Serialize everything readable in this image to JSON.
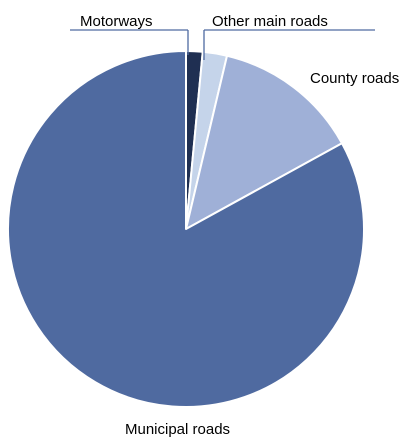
{
  "chart_data": {
    "type": "pie",
    "title": "",
    "start": "12 o'clock",
    "direction": "clockwise",
    "legend": "none",
    "slices": [
      {
        "label": "Motorways",
        "value": 1.5,
        "color": "#1f2f52"
      },
      {
        "label": "Other main roads",
        "value": 2.2,
        "color": "#c5d4ea"
      },
      {
        "label": "County roads",
        "value": 13.3,
        "color": "#9fb0d7"
      },
      {
        "label": "Municipal roads",
        "value": 83.0,
        "color": "#4f6aa0"
      }
    ],
    "labels": {
      "motorways": "Motorways",
      "other_main_roads": "Other main roads",
      "county_roads": "County roads",
      "municipal_roads": "Municipal roads"
    },
    "leader_color": "#4f6aa0"
  }
}
